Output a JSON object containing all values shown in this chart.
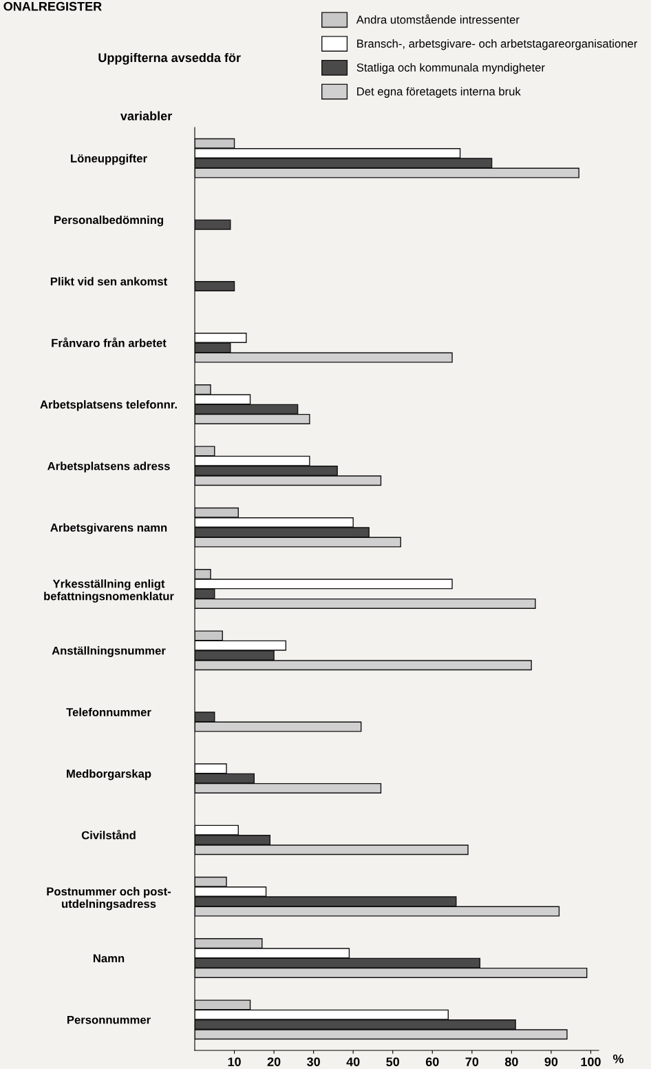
{
  "chart_data": {
    "type": "bar",
    "orientation": "horizontal",
    "title": "ONALREGISTER",
    "legend_title": "Uppgifterna avsedda för",
    "ylabel": "variabler",
    "xlabel": "%",
    "categories": [
      "Löneuppgifter",
      "Personalbedömning",
      "Plikt vid sen ankomst",
      "Frånvaro från arbetet",
      "Arbetsplatsens telefonnr.",
      "Arbetsplatsens adress",
      "Arbetsgivarens namn",
      "Yrkesställning enligt\nbefattningsnomenklatur",
      "Anställningsnummer",
      "Telefonnummer",
      "Medborgarskap",
      "Civilstånd",
      "Postnummer och post-\nutdelningsadress",
      "Namn",
      "Personnummer"
    ],
    "series": [
      {
        "name": "Andra utomstående intressenter",
        "color": "#c8c8c8",
        "values": [
          10,
          null,
          null,
          null,
          4,
          5,
          11,
          4,
          7,
          null,
          null,
          null,
          8,
          17,
          14
        ]
      },
      {
        "name": "Bransch-, arbetsgivare- och arbetstagareorganisationer",
        "color": "#ffffff",
        "values": [
          67,
          null,
          null,
          13,
          14,
          29,
          40,
          65,
          23,
          null,
          8,
          11,
          18,
          39,
          64
        ]
      },
      {
        "name": "Statliga och kommunala myndigheter",
        "color": "#4a4a4a",
        "values": [
          75,
          9,
          10,
          9,
          26,
          36,
          44,
          5,
          20,
          5,
          15,
          19,
          66,
          72,
          81
        ]
      },
      {
        "name": "Det egna företagets interna bruk",
        "color": "#d0d0d0",
        "values": [
          97,
          null,
          null,
          65,
          29,
          47,
          52,
          86,
          85,
          42,
          47,
          69,
          92,
          99,
          94
        ]
      }
    ],
    "xlim": [
      0,
      102
    ],
    "xticks": [
      10,
      20,
      30,
      40,
      50,
      60,
      70,
      80,
      90,
      100
    ],
    "legend": "top right",
    "grid": false
  }
}
